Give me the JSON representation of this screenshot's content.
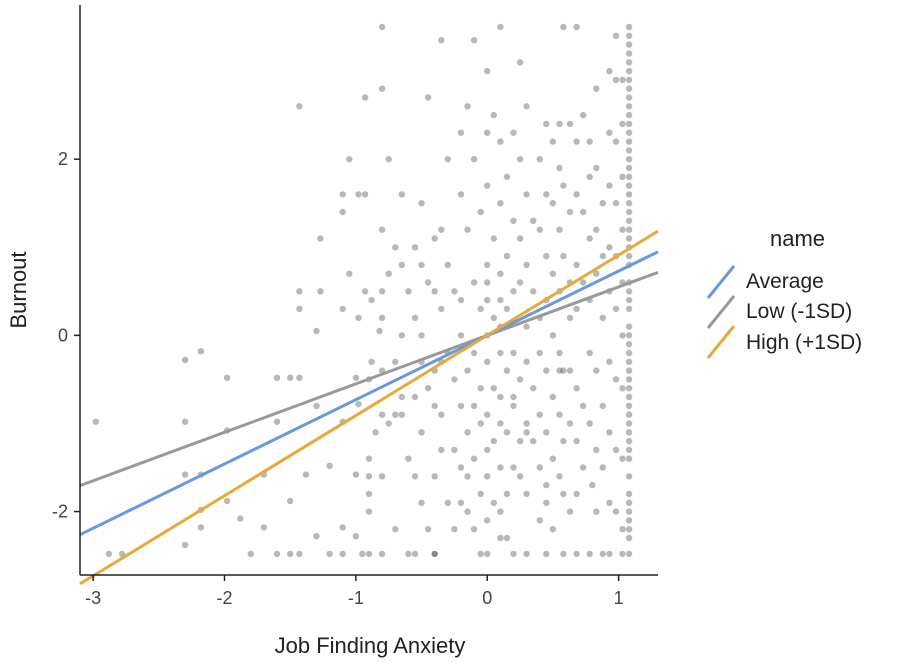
{
  "chart_data": {
    "type": "scatter",
    "title": "",
    "xlabel": "Job Finding Anxiety",
    "ylabel": "Burnout",
    "xlim": [
      -3.1,
      1.3
    ],
    "ylim": [
      -2.72,
      3.75
    ],
    "xticks": [
      -3,
      -2,
      -1,
      0,
      1
    ],
    "yticks": [
      -2,
      0,
      2
    ],
    "xtick_labels": [
      "-3",
      "-2",
      "-1",
      "0",
      "1"
    ],
    "ytick_labels": [
      "-2",
      "0",
      "2"
    ],
    "grid": false,
    "legend": {
      "title": "name",
      "position": "right"
    },
    "series": [
      {
        "name": "Average",
        "type": "line",
        "color": "#6699dd",
        "slope": 0.73,
        "intercept": 0.0
      },
      {
        "name": "Low (-1SD)",
        "type": "line",
        "color": "#999999",
        "slope": 0.55,
        "intercept": 0.0
      },
      {
        "name": "High (+1SD)",
        "type": "line",
        "color": "#e6a93a",
        "slope": 0.91,
        "intercept": 0.0
      }
    ],
    "points": [
      [
        -2.98,
        -0.98
      ],
      [
        -2.88,
        -2.48
      ],
      [
        -2.78,
        -2.48
      ],
      [
        -2.3,
        -0.28
      ],
      [
        -2.3,
        -0.98
      ],
      [
        -2.3,
        -1.58
      ],
      [
        -2.3,
        -2.38
      ],
      [
        -2.18,
        -0.18
      ],
      [
        -2.18,
        -1.58
      ],
      [
        -2.18,
        -1.98
      ],
      [
        -2.18,
        -2.18
      ],
      [
        -1.98,
        -0.48
      ],
      [
        -1.98,
        -1.08
      ],
      [
        -1.98,
        -1.88
      ],
      [
        -1.88,
        -2.08
      ],
      [
        -1.8,
        -2.48
      ],
      [
        -1.7,
        -1.58
      ],
      [
        -1.7,
        -2.18
      ],
      [
        -1.6,
        -0.48
      ],
      [
        -1.6,
        -0.98
      ],
      [
        -1.6,
        -2.48
      ],
      [
        -1.5,
        -0.48
      ],
      [
        -1.5,
        -1.88
      ],
      [
        -1.5,
        -2.48
      ],
      [
        -1.43,
        2.6
      ],
      [
        -1.43,
        0.5
      ],
      [
        -1.43,
        0.3
      ],
      [
        -1.43,
        -0.48
      ],
      [
        -1.43,
        -2.48
      ],
      [
        -1.38,
        -1.58
      ],
      [
        -1.3,
        0.05
      ],
      [
        -1.3,
        -0.8
      ],
      [
        -1.3,
        -2.28
      ],
      [
        -1.27,
        1.1
      ],
      [
        -1.27,
        0.5
      ],
      [
        -1.2,
        -1.48
      ],
      [
        -1.2,
        -2.48
      ],
      [
        -1.1,
        1.6
      ],
      [
        -1.1,
        0.3
      ],
      [
        -1.1,
        -0.98
      ],
      [
        -1.1,
        -2.18
      ],
      [
        -1.1,
        -2.48
      ],
      [
        -1.05,
        2.0
      ],
      [
        -1.05,
        0.7
      ],
      [
        -1.0,
        -0.48
      ],
      [
        -1.0,
        -1.58
      ],
      [
        -1.0,
        -2.28
      ],
      [
        -0.98,
        1.6
      ],
      [
        -0.98,
        0.2
      ],
      [
        -0.98,
        -0.78
      ],
      [
        -0.93,
        2.7
      ],
      [
        -0.93,
        1.6
      ],
      [
        -0.93,
        0.5
      ],
      [
        -0.9,
        -0.5
      ],
      [
        -0.9,
        -1.4
      ],
      [
        -0.9,
        -1.6
      ],
      [
        -0.9,
        -1.8
      ],
      [
        -0.9,
        -2.0
      ],
      [
        -0.9,
        -2.48
      ],
      [
        -0.88,
        0.4
      ],
      [
        -0.88,
        -0.3
      ],
      [
        -0.85,
        -1.1
      ],
      [
        -0.82,
        0.05
      ],
      [
        -0.8,
        3.5
      ],
      [
        -0.8,
        2.8
      ],
      [
        -0.8,
        1.2
      ],
      [
        -0.8,
        0.5
      ],
      [
        -0.8,
        0.2
      ],
      [
        -0.8,
        -0.4
      ],
      [
        -0.8,
        -0.9
      ],
      [
        -0.8,
        -1.6
      ],
      [
        -0.8,
        -2.48
      ],
      [
        -0.75,
        2.0
      ],
      [
        -0.75,
        0.7
      ],
      [
        -0.75,
        -1.0
      ],
      [
        -0.7,
        1.0
      ],
      [
        -0.7,
        -0.3
      ],
      [
        -0.7,
        -2.2
      ],
      [
        -0.65,
        1.6
      ],
      [
        -0.65,
        0.8
      ],
      [
        -0.65,
        0.0
      ],
      [
        -0.65,
        -0.7
      ],
      [
        -0.65,
        -0.9
      ],
      [
        -0.6,
        0.5
      ],
      [
        -0.6,
        -1.4
      ],
      [
        -0.55,
        1.0
      ],
      [
        -0.55,
        0.2
      ],
      [
        -0.55,
        -0.7
      ],
      [
        -0.55,
        -1.6
      ],
      [
        -0.55,
        -2.48
      ],
      [
        -0.5,
        1.5
      ],
      [
        -0.5,
        0.0
      ],
      [
        -0.5,
        -0.3
      ],
      [
        -0.5,
        -1.1
      ],
      [
        -0.5,
        -1.9
      ],
      [
        -0.45,
        2.7
      ],
      [
        -0.45,
        0.6
      ],
      [
        -0.45,
        -0.6
      ],
      [
        -0.45,
        -2.2
      ],
      [
        -0.4,
        1.1
      ],
      [
        -0.4,
        0.5
      ],
      [
        -0.4,
        -0.4
      ],
      [
        -0.4,
        -0.8
      ],
      [
        -0.4,
        -1.6
      ],
      [
        -0.4,
        -2.48
      ],
      [
        -0.35,
        3.35
      ],
      [
        -0.35,
        1.2
      ],
      [
        -0.35,
        0.3
      ],
      [
        -0.35,
        -0.3
      ],
      [
        -0.35,
        -0.9
      ],
      [
        -0.35,
        -1.3
      ],
      [
        -0.3,
        2.0
      ],
      [
        -0.3,
        0.8
      ],
      [
        -0.3,
        -0.2
      ],
      [
        -0.3,
        -1.9
      ],
      [
        -0.25,
        0.5
      ],
      [
        -0.25,
        -0.5
      ],
      [
        -0.25,
        -1.3
      ],
      [
        -0.25,
        -2.2
      ],
      [
        -0.2,
        2.3
      ],
      [
        -0.2,
        1.6
      ],
      [
        -0.2,
        0.4
      ],
      [
        -0.2,
        0.0
      ],
      [
        -0.2,
        -0.8
      ],
      [
        -0.2,
        -1.5
      ],
      [
        -0.15,
        2.6
      ],
      [
        -0.15,
        1.2
      ],
      [
        -0.15,
        -0.4
      ],
      [
        -0.15,
        -1.1
      ],
      [
        -0.15,
        -1.6
      ],
      [
        -0.15,
        -2.0
      ],
      [
        -0.1,
        3.35
      ],
      [
        -0.1,
        2.0
      ],
      [
        -0.1,
        0.6
      ],
      [
        -0.1,
        -0.2
      ],
      [
        -0.1,
        -0.8
      ],
      [
        -0.1,
        -1.4
      ],
      [
        -0.1,
        -2.2
      ],
      [
        -0.05,
        1.4
      ],
      [
        -0.05,
        0.3
      ],
      [
        -0.05,
        -0.6
      ],
      [
        -0.05,
        -1.0
      ],
      [
        -0.05,
        -1.8
      ],
      [
        -0.05,
        -2.48
      ],
      [
        0.0,
        3.0
      ],
      [
        0.0,
        2.3
      ],
      [
        0.0,
        1.7
      ],
      [
        0.0,
        0.8
      ],
      [
        0.0,
        0.4
      ],
      [
        0.0,
        0.0
      ],
      [
        0.0,
        -0.3
      ],
      [
        0.0,
        -0.9
      ],
      [
        0.0,
        -1.3
      ],
      [
        0.0,
        -1.6
      ],
      [
        0.0,
        -2.1
      ],
      [
        0.0,
        -2.48
      ],
      [
        0.05,
        2.5
      ],
      [
        0.05,
        1.1
      ],
      [
        0.05,
        0.2
      ],
      [
        0.05,
        -0.6
      ],
      [
        0.05,
        -1.2
      ],
      [
        0.05,
        -1.9
      ],
      [
        0.1,
        3.5
      ],
      [
        0.1,
        2.2
      ],
      [
        0.1,
        1.5
      ],
      [
        0.1,
        0.7
      ],
      [
        0.1,
        0.4
      ],
      [
        0.1,
        0.1
      ],
      [
        0.1,
        -0.2
      ],
      [
        0.1,
        -0.7
      ],
      [
        0.1,
        -1.0
      ],
      [
        0.1,
        -1.5
      ],
      [
        0.1,
        -2.0
      ],
      [
        0.15,
        1.8
      ],
      [
        0.15,
        0.9
      ],
      [
        0.15,
        0.3
      ],
      [
        0.15,
        -0.4
      ],
      [
        0.15,
        -1.1
      ],
      [
        0.15,
        -1.8
      ],
      [
        0.15,
        -2.3
      ],
      [
        0.2,
        2.3
      ],
      [
        0.2,
        1.3
      ],
      [
        0.2,
        0.5
      ],
      [
        0.2,
        -0.2
      ],
      [
        0.2,
        -0.8
      ],
      [
        0.2,
        -1.5
      ],
      [
        0.2,
        -2.48
      ],
      [
        0.25,
        3.1
      ],
      [
        0.25,
        2.0
      ],
      [
        0.25,
        1.1
      ],
      [
        0.25,
        0.6
      ],
      [
        0.25,
        -0.5
      ],
      [
        0.25,
        -1.2
      ],
      [
        0.25,
        -1.6
      ],
      [
        0.3,
        2.6
      ],
      [
        0.3,
        1.6
      ],
      [
        0.3,
        0.8
      ],
      [
        0.3,
        0.1
      ],
      [
        0.3,
        -0.3
      ],
      [
        0.3,
        -1.0
      ],
      [
        0.3,
        -1.8
      ],
      [
        0.3,
        -2.48
      ],
      [
        0.35,
        1.3
      ],
      [
        0.35,
        0.5
      ],
      [
        0.35,
        -0.6
      ],
      [
        0.35,
        -1.2
      ],
      [
        0.4,
        2.0
      ],
      [
        0.4,
        1.2
      ],
      [
        0.4,
        0.2
      ],
      [
        0.4,
        -0.2
      ],
      [
        0.4,
        -0.9
      ],
      [
        0.4,
        -1.5
      ],
      [
        0.4,
        -2.1
      ],
      [
        0.45,
        2.4
      ],
      [
        0.45,
        1.6
      ],
      [
        0.45,
        0.9
      ],
      [
        0.45,
        0.4
      ],
      [
        0.45,
        -0.4
      ],
      [
        0.45,
        -1.1
      ],
      [
        0.45,
        -1.9
      ],
      [
        0.45,
        -2.48
      ],
      [
        0.5,
        2.2
      ],
      [
        0.5,
        1.5
      ],
      [
        0.5,
        0.7
      ],
      [
        0.5,
        0.0
      ],
      [
        0.5,
        -0.7
      ],
      [
        0.5,
        -1.4
      ],
      [
        0.5,
        -2.2
      ],
      [
        0.55,
        2.4
      ],
      [
        0.55,
        1.9
      ],
      [
        0.55,
        1.2
      ],
      [
        0.55,
        0.5
      ],
      [
        0.55,
        -0.2
      ],
      [
        0.55,
        -0.9
      ],
      [
        0.55,
        -1.6
      ],
      [
        0.58,
        3.5
      ],
      [
        0.58,
        1.7
      ],
      [
        0.58,
        0.9
      ],
      [
        0.58,
        -0.4
      ],
      [
        0.58,
        -1.2
      ],
      [
        0.58,
        -1.8
      ],
      [
        0.58,
        -2.48
      ],
      [
        0.63,
        2.4
      ],
      [
        0.63,
        1.4
      ],
      [
        0.63,
        0.6
      ],
      [
        0.63,
        0.2
      ],
      [
        0.63,
        -0.4
      ],
      [
        0.63,
        -1.0
      ],
      [
        0.63,
        -2.0
      ],
      [
        0.68,
        3.5
      ],
      [
        0.68,
        2.2
      ],
      [
        0.68,
        1.6
      ],
      [
        0.68,
        0.8
      ],
      [
        0.68,
        0.3
      ],
      [
        0.68,
        -0.6
      ],
      [
        0.68,
        -1.2
      ],
      [
        0.68,
        -1.8
      ],
      [
        0.68,
        -2.48
      ],
      [
        0.73,
        2.5
      ],
      [
        0.73,
        1.4
      ],
      [
        0.73,
        0.6
      ],
      [
        0.73,
        -0.8
      ],
      [
        0.73,
        -1.5
      ],
      [
        0.78,
        2.2
      ],
      [
        0.78,
        1.8
      ],
      [
        0.78,
        1.1
      ],
      [
        0.78,
        0.4
      ],
      [
        0.78,
        -0.2
      ],
      [
        0.78,
        -1.0
      ],
      [
        0.78,
        -2.48
      ],
      [
        0.83,
        2.8
      ],
      [
        0.83,
        1.9
      ],
      [
        0.83,
        1.2
      ],
      [
        0.83,
        0.7
      ],
      [
        0.83,
        -0.4
      ],
      [
        0.83,
        -1.3
      ],
      [
        0.83,
        -2.0
      ],
      [
        0.88,
        1.5
      ],
      [
        0.88,
        0.9
      ],
      [
        0.88,
        0.2
      ],
      [
        0.88,
        -0.8
      ],
      [
        0.88,
        -1.5
      ],
      [
        0.88,
        -2.48
      ],
      [
        0.93,
        3.0
      ],
      [
        0.93,
        2.3
      ],
      [
        0.93,
        1.7
      ],
      [
        0.93,
        1.0
      ],
      [
        0.93,
        0.5
      ],
      [
        0.93,
        -0.3
      ],
      [
        0.93,
        -1.1
      ],
      [
        0.93,
        -1.9
      ],
      [
        0.93,
        -2.48
      ],
      [
        0.98,
        3.4
      ],
      [
        0.98,
        2.9
      ],
      [
        0.98,
        2.2
      ],
      [
        0.98,
        1.5
      ],
      [
        0.98,
        0.9
      ],
      [
        0.98,
        0.3
      ],
      [
        0.98,
        -0.5
      ],
      [
        0.98,
        -1.3
      ],
      [
        0.98,
        -2.0
      ],
      [
        1.03,
        2.9
      ],
      [
        1.03,
        2.4
      ],
      [
        1.03,
        1.8
      ],
      [
        1.03,
        1.2
      ],
      [
        1.03,
        0.6
      ],
      [
        1.03,
        0.0
      ],
      [
        1.03,
        -0.6
      ],
      [
        1.03,
        -1.4
      ],
      [
        1.03,
        -2.2
      ],
      [
        1.03,
        -2.48
      ],
      [
        1.08,
        3.5
      ],
      [
        1.08,
        3.4
      ],
      [
        1.08,
        3.3
      ],
      [
        1.08,
        3.2
      ],
      [
        1.08,
        3.1
      ],
      [
        1.08,
        3.0
      ],
      [
        1.08,
        2.9
      ],
      [
        1.08,
        2.8
      ],
      [
        1.08,
        2.7
      ],
      [
        1.08,
        2.6
      ],
      [
        1.08,
        2.5
      ],
      [
        1.08,
        2.4
      ],
      [
        1.08,
        2.3
      ],
      [
        1.08,
        2.2
      ],
      [
        1.08,
        2.1
      ],
      [
        1.08,
        2.0
      ],
      [
        1.08,
        1.9
      ],
      [
        1.08,
        1.8
      ],
      [
        1.08,
        1.7
      ],
      [
        1.08,
        1.6
      ],
      [
        1.08,
        1.5
      ],
      [
        1.08,
        1.4
      ],
      [
        1.08,
        1.3
      ],
      [
        1.08,
        1.2
      ],
      [
        1.08,
        1.1
      ],
      [
        1.08,
        1.0
      ],
      [
        1.08,
        0.9
      ],
      [
        1.08,
        0.8
      ],
      [
        1.08,
        0.6
      ],
      [
        1.08,
        0.5
      ],
      [
        1.08,
        0.4
      ],
      [
        1.08,
        0.3
      ],
      [
        1.08,
        0.1
      ],
      [
        1.08,
        0.0
      ],
      [
        1.08,
        -0.1
      ],
      [
        1.08,
        -0.2
      ],
      [
        1.08,
        -0.3
      ],
      [
        1.08,
        -0.4
      ],
      [
        1.08,
        -0.5
      ],
      [
        1.08,
        -0.6
      ],
      [
        1.08,
        -0.7
      ],
      [
        1.08,
        -0.8
      ],
      [
        1.08,
        -0.9
      ],
      [
        1.08,
        -1.0
      ],
      [
        1.08,
        -1.1
      ],
      [
        1.08,
        -1.2
      ],
      [
        1.08,
        -1.3
      ],
      [
        1.08,
        -1.4
      ],
      [
        1.08,
        -1.6
      ],
      [
        1.08,
        -1.8
      ],
      [
        1.08,
        -1.9
      ],
      [
        1.08,
        -2.0
      ],
      [
        1.08,
        -2.1
      ],
      [
        1.08,
        -2.2
      ],
      [
        1.08,
        -2.3
      ],
      [
        1.08,
        -2.48
      ],
      [
        -0.95,
        -2.48
      ],
      [
        -0.6,
        -2.48
      ],
      [
        -0.4,
        -2.48
      ],
      [
        0.1,
        -2.3
      ],
      [
        -0.2,
        -1.9
      ],
      [
        0.3,
        -1.1
      ],
      [
        0.55,
        -0.4
      ],
      [
        0.8,
        -1.7
      ],
      [
        0.2,
        -0.7
      ],
      [
        -0.7,
        -0.9
      ],
      [
        -1.1,
        1.4
      ],
      [
        -0.5,
        0.8
      ],
      [
        0.0,
        0.6
      ],
      [
        0.45,
        -1.7
      ]
    ]
  }
}
